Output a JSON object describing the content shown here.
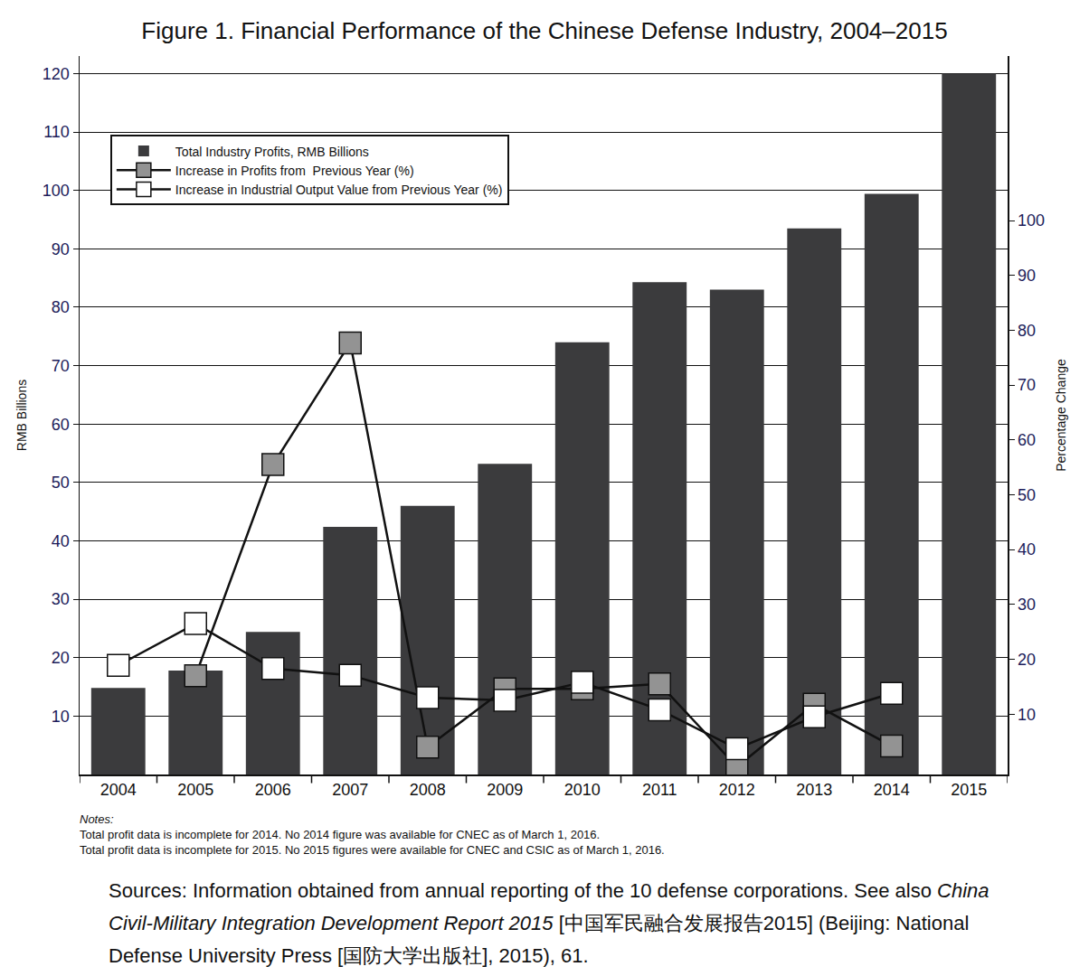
{
  "chart_data": {
    "type": "bar",
    "title": "Figure 1. Financial Performance of the Chinese Defense Industry, 2004–2015",
    "categories": [
      "2004",
      "2005",
      "2006",
      "2007",
      "2008",
      "2009",
      "2010",
      "2011",
      "2012",
      "2013",
      "2014",
      "2015"
    ],
    "series": [
      {
        "name": "Total Industry Profits, RMB Billions",
        "type": "bar",
        "color": "#3b3b3d",
        "values": [
          14.8,
          17.8,
          24.4,
          42.4,
          46.0,
          53.2,
          74.0,
          84.3,
          83.0,
          93.5,
          99.4,
          120.0
        ]
      },
      {
        "name": "Increase in Profits from  Previous Year (%)",
        "type": "line",
        "axis": "y2",
        "marker": "square",
        "color": "#939393",
        "values": [
          null,
          17.0,
          55.5,
          77.7,
          4.0,
          14.6,
          14.6,
          15.5,
          0.4,
          11.8,
          4.2,
          null
        ]
      },
      {
        "name": "Increase in Industrial Output Value from Previous Year (%)",
        "type": "line",
        "axis": "y2",
        "marker": "square",
        "color": "#ffffff",
        "values": [
          18.9,
          26.5,
          18.3,
          17.1,
          13.0,
          12.5,
          15.8,
          10.8,
          3.7,
          9.5,
          13.8,
          null
        ]
      }
    ],
    "y_label": "RMB Billions",
    "y2_label": "Percentage Change",
    "ylim": [
      0,
      123
    ],
    "yticks": [
      10,
      20,
      30,
      40,
      50,
      60,
      70,
      80,
      90,
      100,
      110,
      120
    ],
    "y2lim": [
      -1,
      130
    ],
    "y2ticks": [
      10,
      20,
      30,
      40,
      50,
      60,
      70,
      80,
      90,
      100
    ],
    "grid": true,
    "legend": "top left",
    "notes_title": "Notes:",
    "notes": [
      "Total profit data is incomplete for 2014. No 2014 figure was available for CNEC as of March 1, 2016.",
      "Total profit data is incomplete for 2015. No 2015 figures were available for CNEC and CSIC as of March 1, 2016."
    ],
    "sources": [
      "Sources: Information obtained from annual reporting of the 10 defense corporations. See also ",
      "China Civil-Military Integration Development Report 2015",
      " [中国军民融合发展报告2015] (Beijing: National Defense University Press [国防大学出版社], 2015), 61."
    ]
  }
}
